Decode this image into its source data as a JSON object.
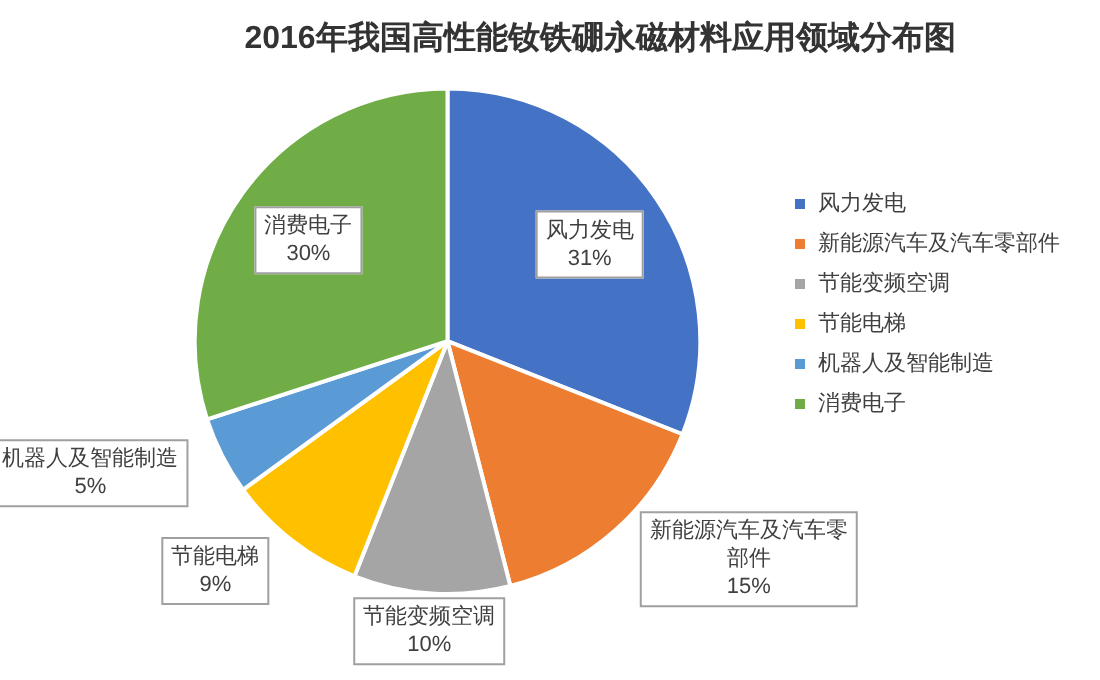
{
  "chart_data": {
    "type": "pie",
    "title": "2016年我国高性能钕铁硼永磁材料应用领域分布图",
    "categories": [
      "风力发电",
      "新能源汽车及汽车零部件",
      "节能变频空调",
      "节能电梯",
      "机器人及智能制造",
      "消费电子"
    ],
    "values": [
      31,
      15,
      10,
      9,
      5,
      30
    ],
    "colors": [
      "#4472c4",
      "#ed7d31",
      "#a5a5a5",
      "#ffc000",
      "#5b9bd5",
      "#70ad47"
    ],
    "value_labels": [
      "31%",
      "15%",
      "10%",
      "9%",
      "5%",
      "30%"
    ],
    "legend": "right"
  }
}
